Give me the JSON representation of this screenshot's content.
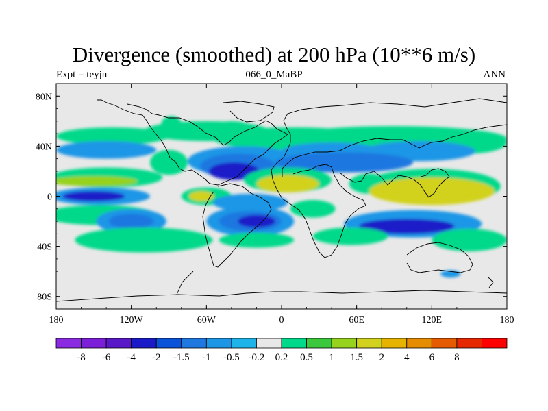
{
  "chart_data": {
    "type": "heatmap",
    "title": "Divergence (smoothed) at 200 hPa (10**6 m/s)",
    "left_label": "Expt = teyjn",
    "center_label": "066_0_MaBP",
    "right_label": "ANN",
    "x_range": [
      -180,
      180
    ],
    "y_range": [
      -90,
      90
    ],
    "x_ticks": [
      {
        "value": -180,
        "label": "180"
      },
      {
        "value": -120,
        "label": "120W"
      },
      {
        "value": -60,
        "label": "60W"
      },
      {
        "value": 0,
        "label": "0"
      },
      {
        "value": 60,
        "label": "60E"
      },
      {
        "value": 120,
        "label": "120E"
      },
      {
        "value": 180,
        "label": "180"
      }
    ],
    "y_ticks": [
      {
        "value": 80,
        "label": "80N"
      },
      {
        "value": 40,
        "label": "40N"
      },
      {
        "value": 0,
        "label": "0"
      },
      {
        "value": -40,
        "label": "40S"
      },
      {
        "value": -80,
        "label": "80S"
      }
    ],
    "colorbar": {
      "colors": [
        "#8a2be2",
        "#7b1fd8",
        "#5a19c8",
        "#1a1ac8",
        "#0a52d8",
        "#1e78e0",
        "#1e96e6",
        "#1eb4ea",
        "#e8e8e8",
        "#00d98a",
        "#3cc83c",
        "#96d21e",
        "#d2d21e",
        "#e6b400",
        "#e68c00",
        "#e65a00",
        "#e62800",
        "#ff0000"
      ],
      "labels": [
        "-8",
        "-6",
        "-4",
        "-2",
        "-1.5",
        "-1",
        "-0.5",
        "-0.2",
        "0.2",
        "0.5",
        "1",
        "1.5",
        "2",
        "4",
        "6",
        "8"
      ]
    },
    "regions": [
      {
        "lat": 58,
        "lon": -88,
        "dlat": 6,
        "dlon": 8,
        "value": 0.5
      },
      {
        "lat": 56,
        "lon": -40,
        "dlat": 4,
        "dlon": 14,
        "value": 0.5
      },
      {
        "lat": 52,
        "lon": -60,
        "dlat": 8,
        "dlon": 50,
        "value": 0.5
      },
      {
        "lat": 48,
        "lon": -135,
        "dlat": 7,
        "dlon": 45,
        "value": 0.5
      },
      {
        "lat": 46,
        "lon": 10,
        "dlat": 9,
        "dlon": 65,
        "value": 0.5
      },
      {
        "lat": 46,
        "lon": 90,
        "dlat": 10,
        "dlon": 90,
        "value": 0.5
      },
      {
        "lat": 43,
        "lon": 150,
        "dlat": 9,
        "dlon": 30,
        "value": 0.5
      },
      {
        "lat": 37,
        "lon": -140,
        "dlat": 7,
        "dlon": 40,
        "value": -0.5
      },
      {
        "lat": 36,
        "lon": 40,
        "dlat": 7,
        "dlon": 40,
        "value": -0.5
      },
      {
        "lat": 36,
        "lon": 110,
        "dlat": 8,
        "dlon": 45,
        "value": -0.5
      },
      {
        "lat": 27,
        "lon": -90,
        "dlat": 10,
        "dlon": 15,
        "value": 0.5
      },
      {
        "lat": 28,
        "lon": -30,
        "dlat": 12,
        "dlon": 45,
        "value": -0.5
      },
      {
        "lat": 24,
        "lon": -35,
        "dlat": 10,
        "dlon": 30,
        "value": -1
      },
      {
        "lat": 20,
        "lon": -38,
        "dlat": 7,
        "dlon": 20,
        "value": -2
      },
      {
        "lat": 27,
        "lon": 50,
        "dlat": 8,
        "dlon": 55,
        "value": -1
      },
      {
        "lat": 15,
        "lon": -140,
        "dlat": 8,
        "dlon": 45,
        "value": 0.5
      },
      {
        "lat": 12,
        "lon": -150,
        "dlat": 4,
        "dlon": 35,
        "value": 1.5
      },
      {
        "lat": 13,
        "lon": 5,
        "dlat": 10,
        "dlon": 35,
        "value": 0.5
      },
      {
        "lat": 10,
        "lon": 5,
        "dlat": 7,
        "dlon": 25,
        "value": 2
      },
      {
        "lat": 10,
        "lon": 70,
        "dlat": 8,
        "dlon": 16,
        "value": 0.5
      },
      {
        "lat": 8,
        "lon": 120,
        "dlat": 14,
        "dlon": 55,
        "value": 0.5
      },
      {
        "lat": 4,
        "lon": 120,
        "dlat": 11,
        "dlon": 50,
        "value": 2
      },
      {
        "lat": 0,
        "lon": -60,
        "dlat": 7,
        "dlon": 20,
        "value": 0.5
      },
      {
        "lat": 0,
        "lon": -64,
        "dlat": 4,
        "dlon": 10,
        "value": 2
      },
      {
        "lat": 0,
        "lon": -145,
        "dlat": 7,
        "dlon": 40,
        "value": -0.5
      },
      {
        "lat": 0,
        "lon": -150,
        "dlat": 4,
        "dlon": 25,
        "value": -2
      },
      {
        "lat": -5,
        "lon": -25,
        "dlat": 7,
        "dlon": 30,
        "value": -0.5
      },
      {
        "lat": -10,
        "lon": 25,
        "dlat": 7,
        "dlon": 18,
        "value": 0.5
      },
      {
        "lat": -15,
        "lon": -145,
        "dlat": 8,
        "dlon": 45,
        "value": 0.5
      },
      {
        "lat": -20,
        "lon": -120,
        "dlat": 10,
        "dlon": 28,
        "value": -0.5
      },
      {
        "lat": -20,
        "lon": -120,
        "dlat": 6,
        "dlon": 18,
        "value": -1
      },
      {
        "lat": -20,
        "lon": -25,
        "dlat": 12,
        "dlon": 35,
        "value": -0.5
      },
      {
        "lat": -20,
        "lon": -25,
        "dlat": 8,
        "dlon": 25,
        "value": -1
      },
      {
        "lat": -20,
        "lon": -20,
        "dlat": 5,
        "dlon": 15,
        "value": -2
      },
      {
        "lat": -22,
        "lon": 105,
        "dlat": 11,
        "dlon": 55,
        "value": -0.5
      },
      {
        "lat": -24,
        "lon": 100,
        "dlat": 6,
        "dlon": 38,
        "value": -2
      },
      {
        "lat": -35,
        "lon": -110,
        "dlat": 10,
        "dlon": 55,
        "value": 0.5
      },
      {
        "lat": -35,
        "lon": -20,
        "dlat": 6,
        "dlon": 30,
        "value": 0.5
      },
      {
        "lat": -32,
        "lon": 55,
        "dlat": 7,
        "dlon": 30,
        "value": 0.5
      },
      {
        "lat": -35,
        "lon": 150,
        "dlat": 9,
        "dlon": 30,
        "value": 0.5
      },
      {
        "lat": -62,
        "lon": 135,
        "dlat": 3,
        "dlon": 8,
        "value": -0.5
      }
    ]
  }
}
